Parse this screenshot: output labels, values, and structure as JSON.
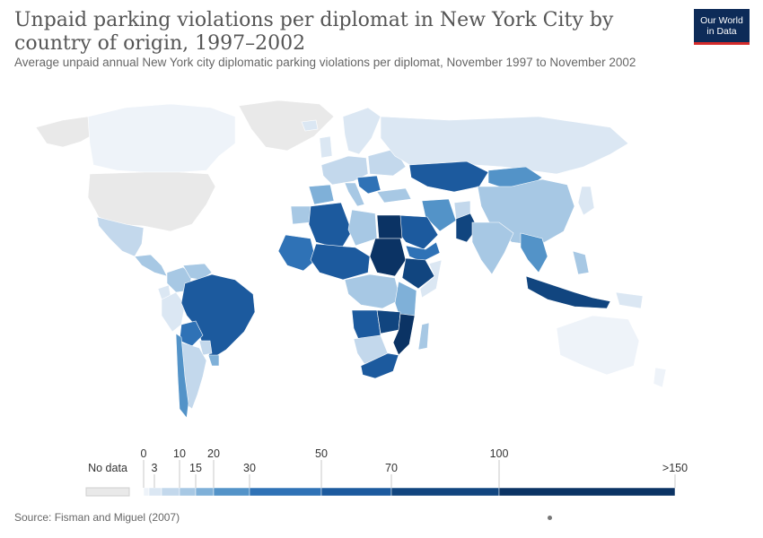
{
  "title": "Unpaid parking violations per diplomat in New York City by country of origin, 1997–2002",
  "subtitle": "Average unpaid annual New York city diplomatic parking violations per diplomat, November 1997 to November 2002",
  "logo": {
    "line1": "Our World",
    "line2": "in Data"
  },
  "source": "Source: Fisman and Miguel (2007)",
  "colors": {
    "no_data": "#e9e9e9",
    "bins": [
      "#eef3f9",
      "#dbe7f3",
      "#c3d8ec",
      "#a7c8e4",
      "#7fb0d8",
      "#5393c8",
      "#2f72b6",
      "#1c5a9e",
      "#11457f",
      "#0b3364"
    ]
  },
  "legend": {
    "no_data_label": "No data",
    "tick_labels": [
      "0",
      "3",
      "10",
      "15",
      "20",
      "30",
      "50",
      "70",
      "100",
      ">150"
    ]
  },
  "map_regions": [
    {
      "name": "Alaska",
      "bin": -1
    },
    {
      "name": "Canada",
      "bin": 0
    },
    {
      "name": "United States",
      "bin": -1
    },
    {
      "name": "Greenland",
      "bin": -1
    },
    {
      "name": "Mexico",
      "bin": 2
    },
    {
      "name": "Central America",
      "bin": 3
    },
    {
      "name": "Colombia",
      "bin": 3
    },
    {
      "name": "Venezuela",
      "bin": 3
    },
    {
      "name": "Ecuador",
      "bin": 1
    },
    {
      "name": "Peru",
      "bin": 1
    },
    {
      "name": "Brazil",
      "bin": 7
    },
    {
      "name": "Bolivia",
      "bin": 6
    },
    {
      "name": "Paraguay",
      "bin": 2
    },
    {
      "name": "Argentina",
      "bin": 2
    },
    {
      "name": "Chile",
      "bin": 5
    },
    {
      "name": "Uruguay",
      "bin": 4
    },
    {
      "name": "Iceland",
      "bin": 1
    },
    {
      "name": "Scandinavia",
      "bin": 1
    },
    {
      "name": "United Kingdom",
      "bin": 1
    },
    {
      "name": "Western Europe",
      "bin": 2
    },
    {
      "name": "Iberia",
      "bin": 4
    },
    {
      "name": "Italy",
      "bin": 3
    },
    {
      "name": "Eastern Europe",
      "bin": 2
    },
    {
      "name": "Balkans",
      "bin": 6
    },
    {
      "name": "Russia",
      "bin": 1
    },
    {
      "name": "Kazakhstan",
      "bin": 7
    },
    {
      "name": "Mongolia",
      "bin": 5
    },
    {
      "name": "China",
      "bin": 3
    },
    {
      "name": "Japan",
      "bin": 1
    },
    {
      "name": "Turkey",
      "bin": 3
    },
    {
      "name": "Iran",
      "bin": 5
    },
    {
      "name": "Afghanistan",
      "bin": 2
    },
    {
      "name": "Pakistan",
      "bin": 8
    },
    {
      "name": "India",
      "bin": 3
    },
    {
      "name": "Saudi Arabia",
      "bin": 7
    },
    {
      "name": "Oman and Yemen",
      "bin": 6
    },
    {
      "name": "Southeast Asia",
      "bin": 5
    },
    {
      "name": "Indonesia",
      "bin": 8
    },
    {
      "name": "Philippines",
      "bin": 3
    },
    {
      "name": "Papua New Guinea",
      "bin": 1
    },
    {
      "name": "Australia",
      "bin": 0
    },
    {
      "name": "New Zealand",
      "bin": 0
    },
    {
      "name": "Morocco",
      "bin": 3
    },
    {
      "name": "Algeria",
      "bin": 7
    },
    {
      "name": "Libya",
      "bin": 3
    },
    {
      "name": "Egypt",
      "bin": 9
    },
    {
      "name": "Sudan",
      "bin": 9
    },
    {
      "name": "West Africa",
      "bin": 6
    },
    {
      "name": "Sahel",
      "bin": 7
    },
    {
      "name": "Ethiopia",
      "bin": 8
    },
    {
      "name": "Somalia",
      "bin": 1
    },
    {
      "name": "Central Africa",
      "bin": 3
    },
    {
      "name": "East Africa",
      "bin": 4
    },
    {
      "name": "Angola",
      "bin": 7
    },
    {
      "name": "Zambia",
      "bin": 8
    },
    {
      "name": "Mozambique",
      "bin": 9
    },
    {
      "name": "Namibia and Botswana",
      "bin": 2
    },
    {
      "name": "South Africa",
      "bin": 7
    },
    {
      "name": "Madagascar",
      "bin": 3
    }
  ]
}
